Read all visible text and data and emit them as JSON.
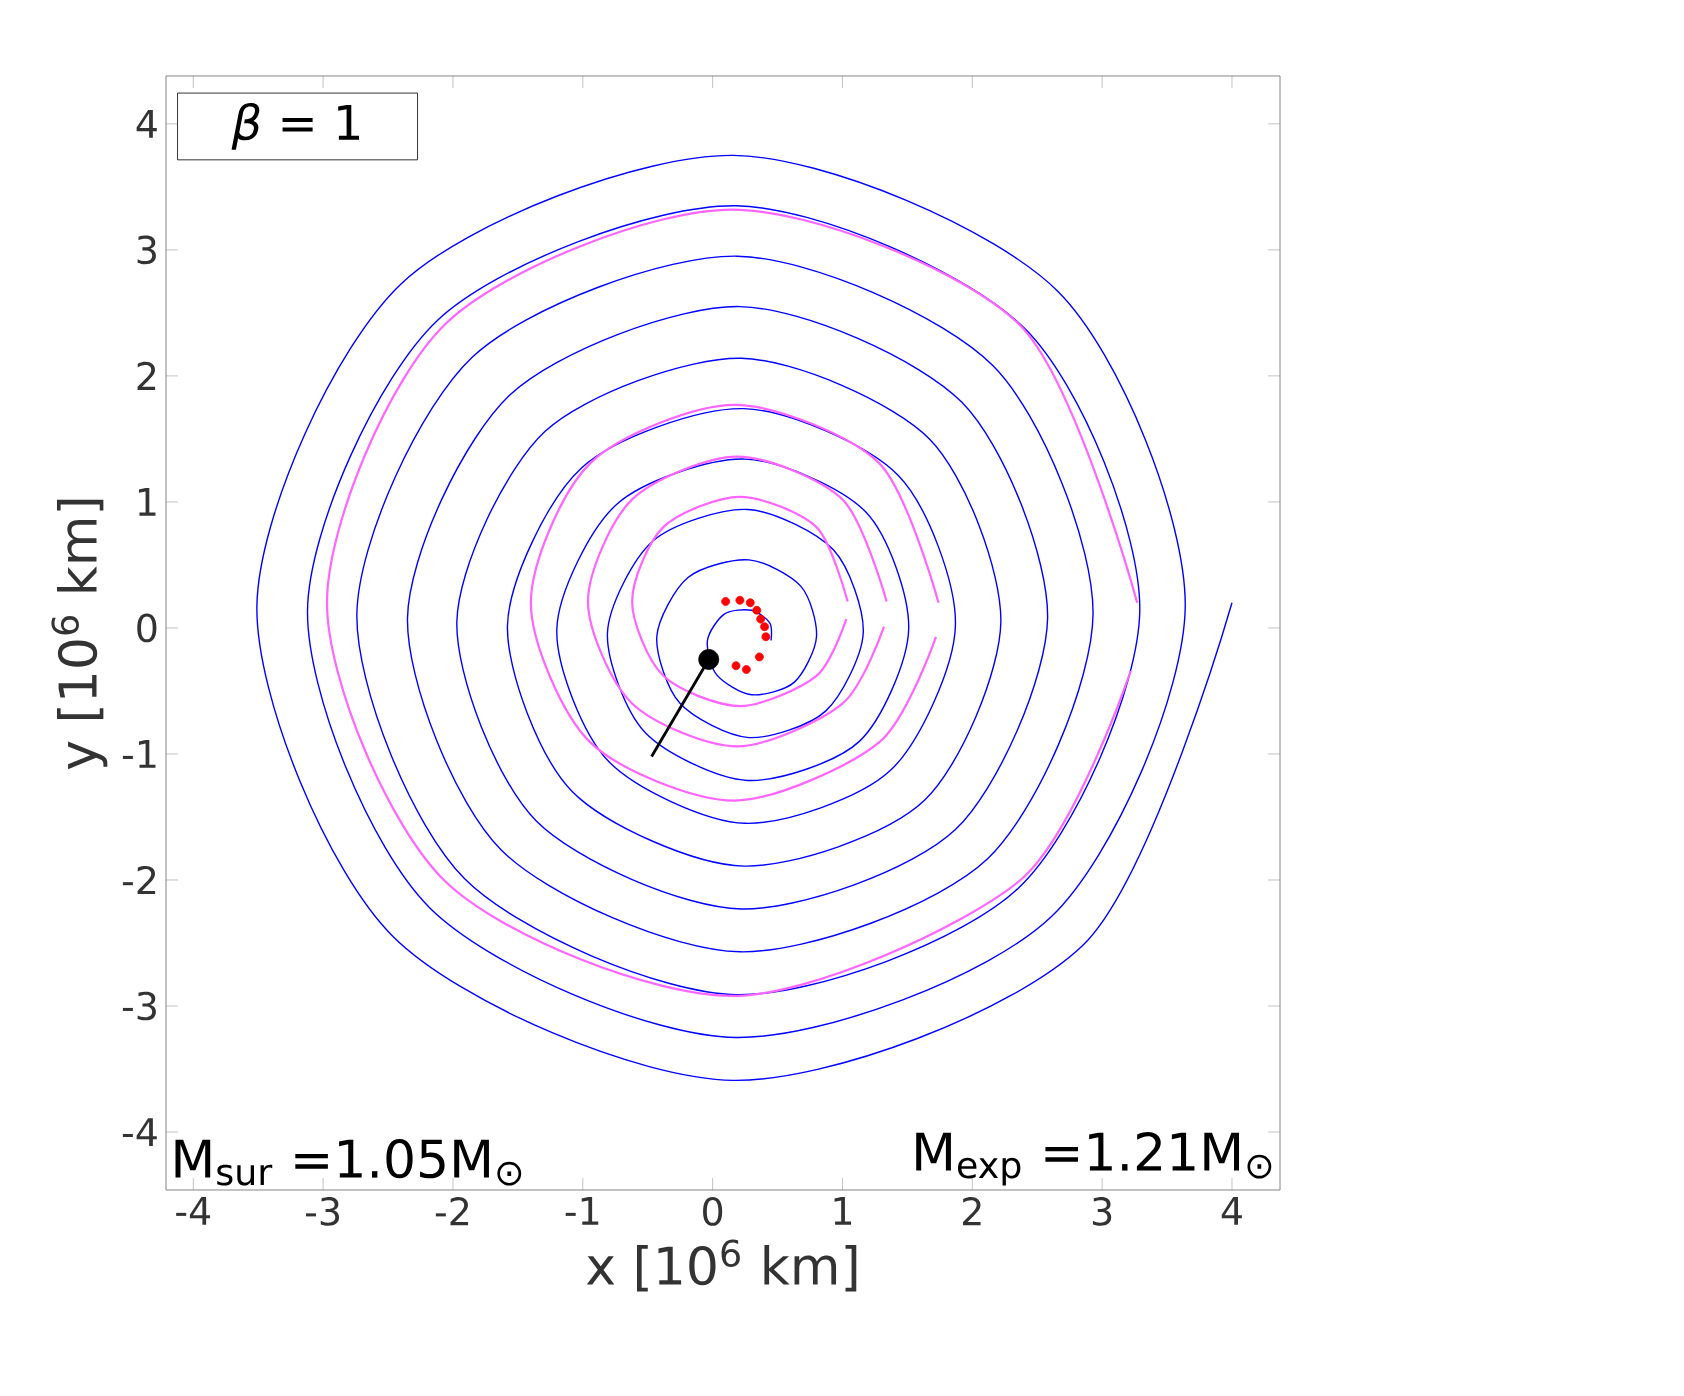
{
  "chart_data": {
    "type": "line",
    "xlabel": "x [10$^{6}$ km]",
    "ylabel": "y [10$^{6}$ km]",
    "xlim": [
      -4.21,
      4.37
    ],
    "ylim": [
      -4.46,
      4.38
    ],
    "xticks": [
      -4,
      -3,
      -2,
      -1,
      0,
      1,
      2,
      3,
      4
    ],
    "yticks": [
      -4,
      -3,
      -2,
      -1,
      0,
      1,
      2,
      3,
      4
    ],
    "annotations": [
      "*β* = 1",
      "M$_{sur}$ =1.05M$_{⊙}$",
      "M$_{exp}$ =1.21M$_{⊙}$"
    ],
    "series": [
      {
        "type": "line",
        "color": "#0000ff",
        "x": [
          0.45,
          0.44,
          0.3,
          0.09,
          -0.04,
          0.03,
          0.3,
          0.63,
          0.8,
          0.68,
          0.28,
          -0.19,
          -0.43,
          -0.25,
          0.28,
          0.87,
          1.16,
          0.93,
          0.27,
          -0.46,
          -0.81,
          -0.52,
          0.27,
          1.13,
          1.51,
          1.18,
          0.25,
          -0.74,
          -1.2,
          -0.8,
          0.25,
          1.37,
          1.87,
          1.43,
          0.24,
          -1.01,
          -1.58,
          -1.08,
          0.24,
          1.63,
          2.22,
          1.67,
          0.22,
          -1.29,
          -1.97,
          -1.36,
          0.22,
          1.87,
          2.58,
          1.92,
          0.21,
          -1.56,
          -2.35,
          -1.63,
          0.21,
          2.12,
          2.93,
          2.16,
          0.19,
          -1.85,
          -2.74,
          -1.91,
          0.19,
          2.36,
          3.29,
          2.41,
          0.18,
          -2.12,
          -3.12,
          -2.18,
          0.18,
          2.61,
          3.64,
          2.66,
          0.16,
          -2.4,
          -3.51,
          -2.46,
          0.16,
          2.85,
          4.0
        ],
        "values": [
          -0.1,
          0.04,
          0.14,
          0.11,
          -0.1,
          -0.37,
          -0.53,
          -0.43,
          -0.07,
          0.33,
          0.54,
          0.4,
          -0.07,
          -0.6,
          -0.87,
          -0.66,
          -0.04,
          0.62,
          0.94,
          0.69,
          -0.04,
          -0.83,
          -1.21,
          -0.9,
          -0.01,
          0.92,
          1.34,
          0.98,
          -0.01,
          -1.06,
          -1.55,
          -1.13,
          0.02,
          1.21,
          1.74,
          1.27,
          0.02,
          -1.3,
          -1.89,
          -1.37,
          0.05,
          1.5,
          2.14,
          1.56,
          0.05,
          -1.53,
          -2.23,
          -1.6,
          0.08,
          1.79,
          2.55,
          1.85,
          0.08,
          -1.76,
          -2.57,
          -1.83,
          0.11,
          2.08,
          2.95,
          2.15,
          0.11,
          -1.99,
          -2.91,
          -2.06,
          0.14,
          2.37,
          3.35,
          2.44,
          0.14,
          -2.22,
          -3.25,
          -2.29,
          0.17,
          2.67,
          3.75,
          2.73,
          0.17,
          -2.45,
          -3.59,
          -2.52,
          0.2
        ]
      },
      {
        "type": "line",
        "color": "#ff66ff",
        "x": [
          1.04,
          0.8,
          0.21,
          -0.38,
          -0.62,
          -0.38,
          0.21,
          0.8,
          1.03
        ],
        "values": [
          0.21,
          0.8,
          1.04,
          0.8,
          0.21,
          -0.38,
          -0.62,
          -0.38,
          0.07
        ]
      },
      {
        "type": "line",
        "color": "#ff66ff",
        "x": [
          1.34,
          1.0,
          0.19,
          -0.62,
          -0.96,
          -0.62,
          0.19,
          1.0,
          1.32
        ],
        "values": [
          0.21,
          1.02,
          1.36,
          1.02,
          0.21,
          -0.6,
          -0.94,
          -0.6,
          0.01
        ]
      },
      {
        "type": "line",
        "color": "#ff66ff",
        "x": [
          1.74,
          1.28,
          0.17,
          -0.94,
          -1.4,
          -0.94,
          0.17,
          1.28,
          1.72
        ],
        "values": [
          0.2,
          1.31,
          1.77,
          1.31,
          0.2,
          -0.91,
          -1.37,
          -0.91,
          -0.07
        ]
      },
      {
        "type": "line",
        "color": "#ff66ff",
        "x": [
          3.27,
          2.36,
          0.15,
          -2.06,
          -2.97,
          -2.06,
          0.15,
          2.36,
          3.22
        ],
        "values": [
          0.2,
          2.41,
          3.32,
          2.41,
          0.2,
          -2.01,
          -2.92,
          -2.01,
          -0.34
        ]
      },
      {
        "type": "scatter",
        "color": "#ff0000",
        "x": [
          0.1,
          0.21,
          0.29,
          0.34,
          0.37,
          0.4,
          0.41,
          0.36,
          0.26,
          0.18
        ],
        "values": [
          0.21,
          0.22,
          0.2,
          0.14,
          0.07,
          0.01,
          -0.07,
          -0.23,
          -0.33,
          -0.3
        ]
      },
      {
        "type": "line",
        "color": "#000000",
        "x": [
          -0.03,
          -0.47
        ],
        "values": [
          -0.25,
          -1.02
        ]
      },
      {
        "type": "scatter",
        "color": "#000000",
        "x": [
          -0.03
        ],
        "values": [
          -0.25
        ]
      }
    ]
  }
}
